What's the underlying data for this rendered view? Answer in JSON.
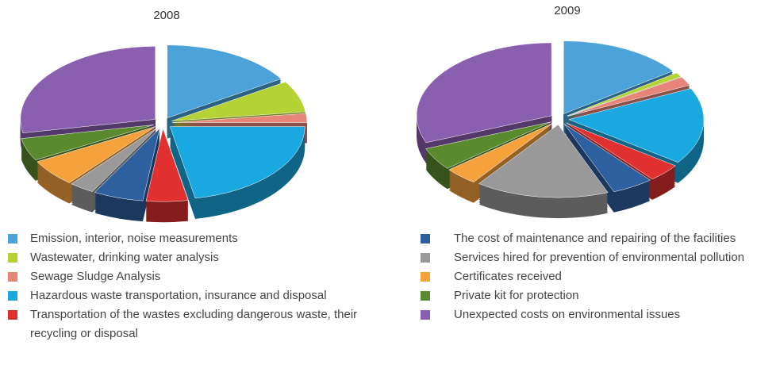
{
  "chart_data": [
    {
      "type": "pie",
      "title": "2008",
      "categories": [
        "Emission, interior, noise measurements",
        "Wastewater, drinking water analysis",
        "Sewage Sludge Analysis",
        "Hazardous waste transportation, insurance and disposal",
        "Transportation of the wastes excluding dangerous waste, their recycling or disposal",
        "The cost of maintenance and repairing of the facilities",
        "Services hired for prevention of environmental pollution",
        "Certificates received",
        "Private kit for protection",
        "Unexpected costs on environmental issues"
      ],
      "values": [
        16,
        7,
        2,
        22,
        5,
        6,
        3,
        6,
        5,
        28
      ],
      "colors": [
        "#4ba3d9",
        "#b5d334",
        "#e8857a",
        "#1aa8e0",
        "#e03030",
        "#2e5f9e",
        "#999999",
        "#f5a23c",
        "#5a8a2e",
        "#8a5fb0"
      ]
    },
    {
      "type": "pie",
      "title": "2009",
      "categories": [
        "Emission, interior, noise measurements",
        "Wastewater, drinking water analysis",
        "Sewage Sludge Analysis",
        "Hazardous waste transportation, insurance and disposal",
        "Transportation of the wastes excluding dangerous waste, their recycling or disposal",
        "The cost of maintenance and repairing of the facilities",
        "Services hired for prevention of environmental pollution",
        "Certificates received",
        "Private kit for protection",
        "Unexpected costs on environmental issues"
      ],
      "values": [
        15,
        1,
        2,
        17,
        4,
        5,
        16,
        4,
        5,
        31
      ],
      "colors": [
        "#4ba3d9",
        "#b5d334",
        "#e8857a",
        "#1aa8e0",
        "#e03030",
        "#2e5f9e",
        "#999999",
        "#f5a23c",
        "#5a8a2e",
        "#8a5fb0"
      ]
    }
  ]
}
